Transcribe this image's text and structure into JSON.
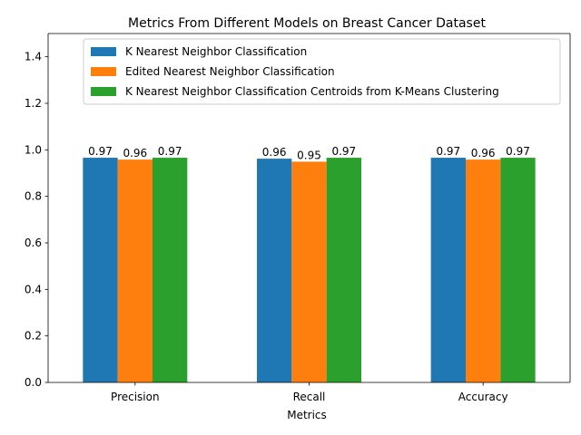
{
  "chart_data": {
    "type": "bar",
    "title": "Metrics From Different Models on Breast Cancer Dataset",
    "xlabel": "Metrics",
    "ylabel": "",
    "categories": [
      "Precision",
      "Recall",
      "Accuracy"
    ],
    "ylim": [
      0,
      1.5
    ],
    "yticks": [
      "0.0",
      "0.2",
      "0.4",
      "0.6",
      "0.8",
      "1.0",
      "1.2",
      "1.4"
    ],
    "grid": false,
    "legend_position": "top-center",
    "series": [
      {
        "name": "K Nearest Neighbor Classification",
        "color": "#1f77b4",
        "values": [
          0.966,
          0.962,
          0.966
        ],
        "labels": [
          "0.97",
          "0.96",
          "0.97"
        ]
      },
      {
        "name": "Edited Nearest Neighbor Classification",
        "color": "#ff7f0e",
        "values": [
          0.958,
          0.949,
          0.958
        ],
        "labels": [
          "0.96",
          "0.95",
          "0.96"
        ]
      },
      {
        "name": "K Nearest Neighbor Classification Centroids from K-Means Clustering",
        "color": "#2ca02c",
        "values": [
          0.966,
          0.966,
          0.966
        ],
        "labels": [
          "0.97",
          "0.97",
          "0.97"
        ]
      }
    ]
  }
}
